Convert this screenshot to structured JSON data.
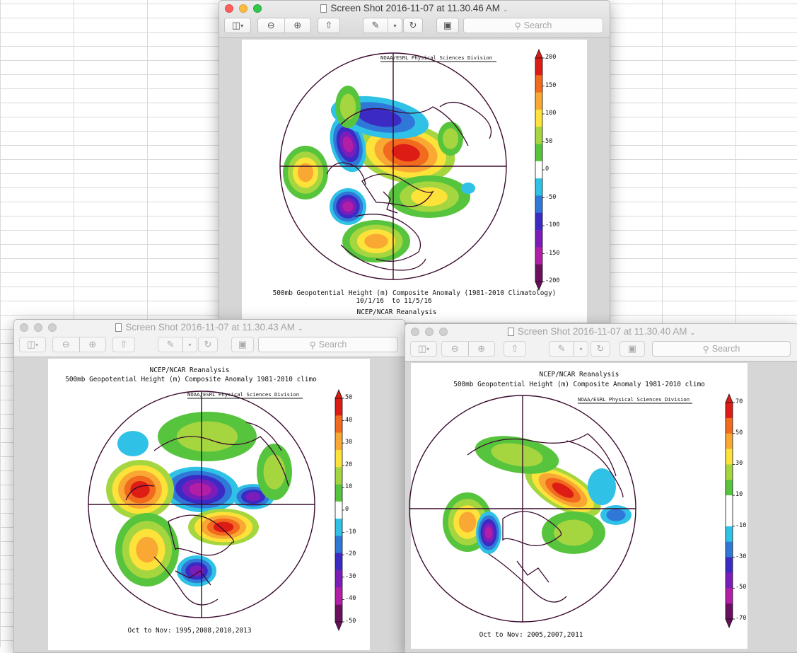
{
  "windows": {
    "main": {
      "title": "Screen Shot 2016-11-07 at 11.30.46 AM",
      "search_placeholder": "Search",
      "map": {
        "credit": "NOAA/ESRL Physical Sciences Division",
        "caption_line1": "500mb Geopotential Height (m) Composite Anomaly (1981-2010 Climatology)",
        "caption_line2": "10/1/16  to 11/5/16",
        "caption_line3": "NCEP/NCAR Reanalysis",
        "colorbar_labels": [
          "200",
          "150",
          "100",
          "50",
          "0",
          "-50",
          "-100",
          "-150",
          "-200"
        ]
      }
    },
    "left": {
      "title": "Screen Shot 2016-11-07 at 11.30.43 AM",
      "search_placeholder": "Search",
      "map": {
        "header_line1": "NCEP/NCAR Reanalysis",
        "header_line2": "500mb Geopotential Height (m) Composite Anomaly 1981-2010 climo",
        "credit": "NOAA/ESRL Physical Sciences Division",
        "footer": "Oct to Nov: 1995,2008,2010,2013",
        "colorbar_labels": [
          "50",
          "40",
          "30",
          "20",
          "10",
          "0",
          "-10",
          "-20",
          "-30",
          "-40",
          "-50"
        ]
      }
    },
    "right": {
      "title": "Screen Shot 2016-11-07 at 11.30.40 AM",
      "search_placeholder": "Search",
      "map": {
        "header_line1": "NCEP/NCAR Reanalysis",
        "header_line2": "500mb Geopotential Height (m) Composite Anomaly 1981-2010 climo",
        "credit": "NOAA/ESRL Physical Sciences Division",
        "footer": "Oct to Nov: 2005,2007,2011",
        "colorbar_labels": [
          "70",
          "50",
          "30",
          "10",
          "-10",
          "-30",
          "-50",
          "-70"
        ]
      }
    }
  },
  "colors": {
    "colorbar_ramp": [
      "#dd1c16",
      "#f26a1d",
      "#f9a833",
      "#fde23a",
      "#a5d640",
      "#57c43d",
      "#ffffff",
      "#2fc2e6",
      "#2f78d8",
      "#3b2bc4",
      "#7c1db9",
      "#b21ea6",
      "#6b0f5f"
    ],
    "map_outline": "#3b0a2e"
  }
}
